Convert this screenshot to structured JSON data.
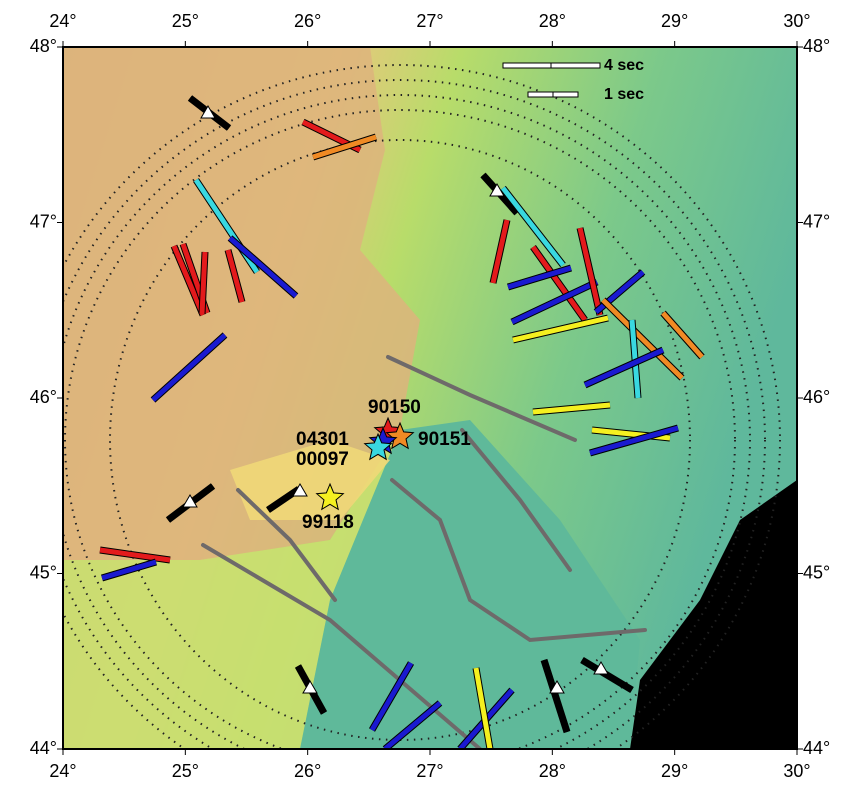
{
  "map": {
    "lon_labels": [
      "24°",
      "25°",
      "26°",
      "27°",
      "28°",
      "29°",
      "30°"
    ],
    "lat_labels": [
      "44°",
      "45°",
      "46°",
      "47°",
      "48°"
    ],
    "scale": [
      "4 sec",
      "1 sec"
    ],
    "events": [
      "90150",
      "04301",
      "90151",
      "00097",
      "99118"
    ]
  }
}
